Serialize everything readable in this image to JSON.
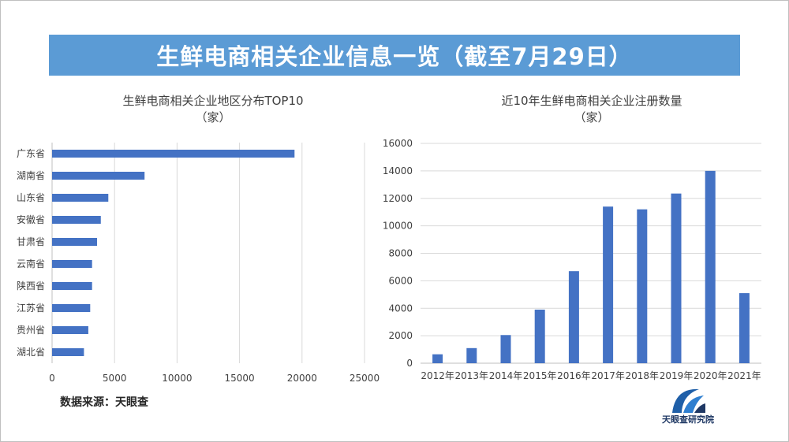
{
  "page": {
    "title": "生鲜电商相关企业信息一览（截至7月29日）",
    "source": "数据来源：天眼查",
    "logo_text": "天眼查研究院"
  },
  "colors": {
    "banner": "#5b9bd5",
    "bar": "#4472c4",
    "grid": "#d9d9d9",
    "axis_text": "#404040"
  },
  "chart_data": [
    {
      "type": "bar",
      "orientation": "horizontal",
      "title": "生鲜电商相关企业地区分布TOP10",
      "subtitle": "（家）",
      "categories": [
        "广东省",
        "湖南省",
        "山东省",
        "安徽省",
        "甘肃省",
        "云南省",
        "陕西省",
        "江苏省",
        "贵州省",
        "湖北省"
      ],
      "values": [
        19400,
        7400,
        4500,
        3900,
        3600,
        3200,
        3200,
        3050,
        2900,
        2550
      ],
      "xlim": [
        0,
        25000
      ],
      "ticks": [
        "0",
        "5000",
        "10000",
        "15000",
        "20000",
        "25000"
      ],
      "grid": true
    },
    {
      "type": "bar",
      "orientation": "vertical",
      "title": "近10年生鲜电商相关企业注册数量",
      "subtitle": "（家）",
      "categories": [
        "2012年",
        "2013年",
        "2014年",
        "2015年",
        "2016年",
        "2017年",
        "2018年",
        "2019年",
        "2020年",
        "2021年"
      ],
      "values": [
        650,
        1100,
        2050,
        3900,
        6700,
        11400,
        11200,
        12350,
        14000,
        5100
      ],
      "ylim": [
        0,
        16000
      ],
      "ticks": [
        "0",
        "2000",
        "4000",
        "6000",
        "8000",
        "10000",
        "12000",
        "14000",
        "16000"
      ],
      "grid": true
    }
  ]
}
